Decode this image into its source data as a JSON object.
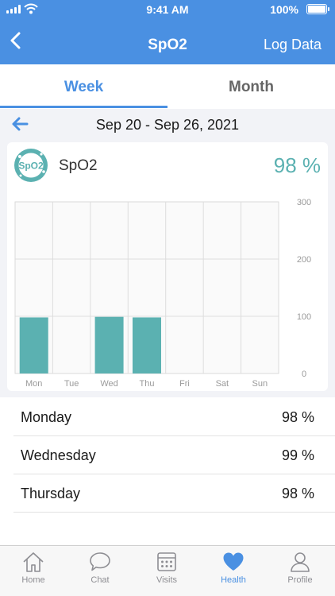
{
  "status_bar": {
    "time": "9:41 AM",
    "battery": "100%"
  },
  "nav": {
    "title": "SpO2",
    "action_label": "Log Data",
    "back_icon": "chevron-left-icon"
  },
  "tabs": [
    {
      "label": "Week",
      "active": true
    },
    {
      "label": "Month",
      "active": false
    }
  ],
  "date_range": "Sep 20 - Sep 26, 2021",
  "metric": {
    "name": "SpO2",
    "badge_text": "SpO2",
    "value": "98 %"
  },
  "colors": {
    "accent": "#4a90e2",
    "bar": "#5bb1b1",
    "value": "#5bb1b1"
  },
  "chart_data": {
    "type": "bar",
    "categories": [
      "Mon",
      "Tue",
      "Wed",
      "Thu",
      "Fri",
      "Sat",
      "Sun"
    ],
    "values": [
      98,
      null,
      99,
      98,
      null,
      null,
      null
    ],
    "y_ticks": [
      "300",
      "200",
      "100",
      "0"
    ],
    "ylim": [
      0,
      300
    ],
    "grid": true,
    "title": "",
    "xlabel": "",
    "ylabel": ""
  },
  "readings": [
    {
      "day": "Monday",
      "value": "98 %"
    },
    {
      "day": "Wednesday",
      "value": "99 %"
    },
    {
      "day": "Thursday",
      "value": "98 %"
    }
  ],
  "tab_bar": [
    {
      "label": "Home",
      "icon": "home-icon",
      "active": false
    },
    {
      "label": "Chat",
      "icon": "chat-icon",
      "active": false
    },
    {
      "label": "Visits",
      "icon": "calendar-icon",
      "active": false
    },
    {
      "label": "Health",
      "icon": "heart-icon",
      "active": true
    },
    {
      "label": "Profile",
      "icon": "profile-icon",
      "active": false
    }
  ]
}
